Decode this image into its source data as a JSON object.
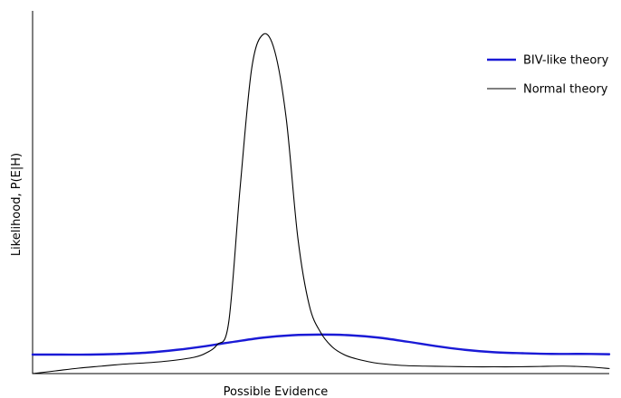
{
  "chart_data": {
    "type": "line",
    "title": "",
    "xlabel": "Possible Evidence",
    "ylabel": "Likelihood, P(E|H)",
    "xlim": [
      0,
      1
    ],
    "ylim": [
      0,
      1
    ],
    "grid": false,
    "legend": "top-right",
    "x_ticks_shown": false,
    "y_ticks_shown": false,
    "series": [
      {
        "name": "BIV-like theory",
        "color": "#1a1ad6",
        "x": [
          0.0,
          0.05,
          0.1,
          0.15,
          0.2,
          0.25,
          0.3,
          0.35,
          0.4,
          0.45,
          0.5,
          0.55,
          0.6,
          0.65,
          0.7,
          0.75,
          0.8,
          0.85,
          0.9,
          0.95,
          1.0
        ],
        "y": [
          0.056,
          0.056,
          0.056,
          0.058,
          0.062,
          0.07,
          0.081,
          0.094,
          0.106,
          0.113,
          0.115,
          0.113,
          0.106,
          0.094,
          0.081,
          0.07,
          0.063,
          0.06,
          0.058,
          0.058,
          0.057
        ]
      },
      {
        "name": "Normal theory",
        "color": "#000000",
        "x": [
          0.0,
          0.04,
          0.08,
          0.12,
          0.16,
          0.2,
          0.24,
          0.28,
          0.3,
          0.32,
          0.34,
          0.36,
          0.38,
          0.4,
          0.42,
          0.44,
          0.46,
          0.48,
          0.5,
          0.52,
          0.54,
          0.56,
          0.58,
          0.6,
          0.64,
          0.68,
          0.72,
          0.76,
          0.8,
          0.84,
          0.88,
          0.92,
          0.96,
          1.0
        ],
        "y": [
          0.0,
          0.008,
          0.016,
          0.022,
          0.028,
          0.032,
          0.038,
          0.048,
          0.06,
          0.085,
          0.15,
          0.55,
          0.9,
          1.0,
          0.95,
          0.75,
          0.4,
          0.2,
          0.12,
          0.078,
          0.056,
          0.044,
          0.036,
          0.03,
          0.024,
          0.022,
          0.021,
          0.02,
          0.02,
          0.02,
          0.021,
          0.022,
          0.02,
          0.015
        ]
      }
    ]
  }
}
